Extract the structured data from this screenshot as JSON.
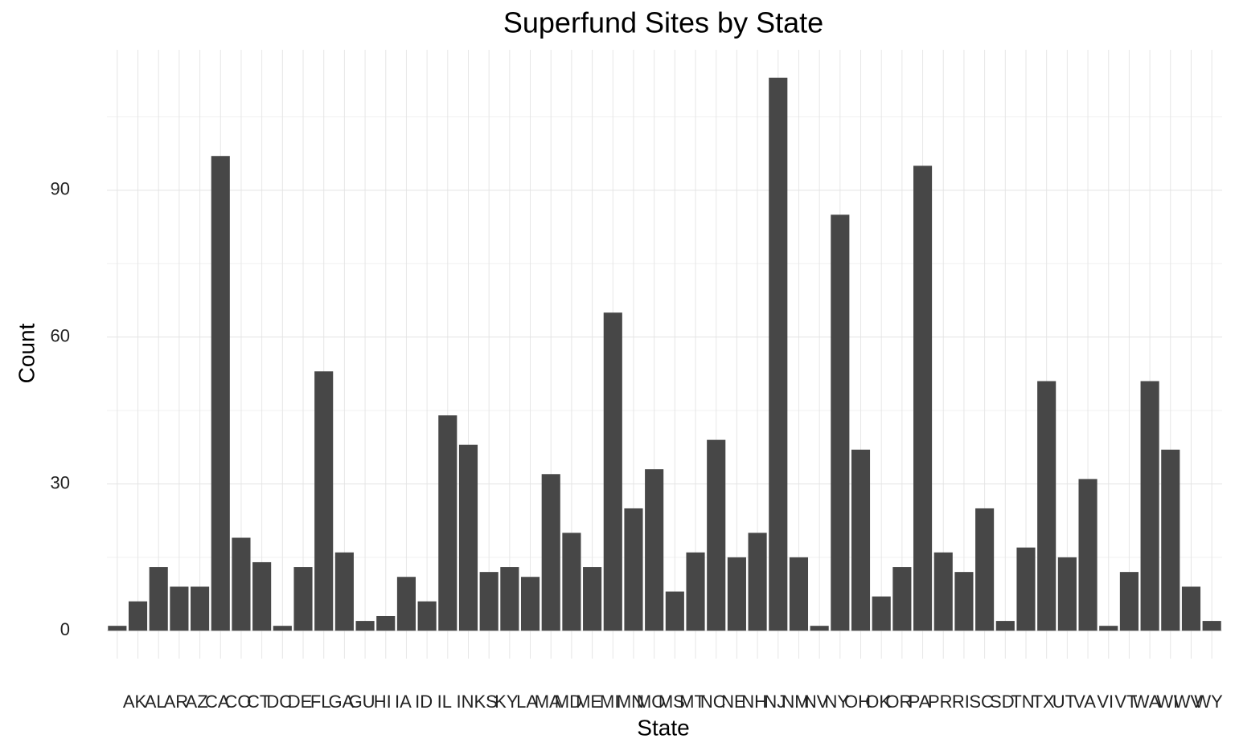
{
  "chart_data": {
    "type": "bar",
    "title": "Superfund Sites by State",
    "x_label": "State",
    "y_label": "Count",
    "categories": [
      null,
      "AK",
      "AL",
      "AR",
      "AZ",
      "CA",
      "CO",
      "CT",
      "DC",
      "DE",
      "FL",
      "GA",
      "GU",
      "HI",
      "IA",
      "ID",
      "IL",
      "IN",
      "KS",
      "KY",
      "LA",
      "MA",
      "MD",
      "ME",
      "MI",
      "MN",
      "MO",
      "MS",
      "MT",
      "NC",
      "NE",
      "NH",
      "NJ",
      "NM",
      "NV",
      "NY",
      "OH",
      "OK",
      "OR",
      "PA",
      "PR",
      "RI",
      "SC",
      "SD",
      "TN",
      "TX",
      "UT",
      "VA",
      "VI",
      "VT",
      "WA",
      "WI",
      "WV",
      "WY"
    ],
    "values": [
      1,
      6,
      13,
      9,
      9,
      97,
      19,
      14,
      1,
      13,
      53,
      16,
      2,
      3,
      11,
      6,
      44,
      38,
      12,
      13,
      11,
      32,
      20,
      13,
      65,
      25,
      33,
      8,
      16,
      39,
      15,
      20,
      113,
      15,
      1,
      85,
      37,
      7,
      13,
      95,
      16,
      12,
      25,
      2,
      17,
      51,
      15,
      31,
      1,
      12,
      51,
      37,
      9,
      2
    ],
    "color": "#474747",
    "ylim": [
      -5.7,
      118.7
    ],
    "yticks": [
      0,
      30,
      60,
      90
    ],
    "y_minor_ticks": [
      15,
      45,
      75,
      105
    ],
    "grid": true
  }
}
